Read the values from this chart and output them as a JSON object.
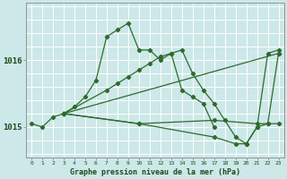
{
  "title": "Graphe pression niveau de la mer (hPa)",
  "bg_color": "#cde8e8",
  "grid_color": "#ffffff",
  "line_color": "#2d6b2d",
  "xlim": [
    -0.5,
    23.5
  ],
  "ylim": [
    1014.55,
    1016.85
  ],
  "yticks": [
    1015,
    1016
  ],
  "line1_x": [
    0,
    1,
    2,
    3,
    4,
    5,
    6,
    7,
    8,
    9,
    10,
    11,
    12,
    13,
    14,
    15,
    16,
    17
  ],
  "line1_y": [
    1015.05,
    1015.0,
    1015.15,
    1015.2,
    1015.3,
    1015.45,
    1015.7,
    1016.35,
    1016.45,
    1016.55,
    1016.15,
    1016.15,
    1016.0,
    1016.1,
    1015.55,
    1015.45,
    1015.35,
    1015.0
  ],
  "line2_x": [
    3,
    7,
    8,
    9,
    10,
    11,
    12,
    13,
    14,
    15,
    16,
    17,
    18,
    19,
    20,
    21,
    22,
    23
  ],
  "line2_y": [
    1015.2,
    1015.55,
    1015.65,
    1015.75,
    1015.85,
    1015.95,
    1016.05,
    1016.1,
    1016.15,
    1015.8,
    1015.55,
    1015.35,
    1015.1,
    1014.85,
    1014.75,
    1015.0,
    1016.1,
    1016.15
  ],
  "line3_x": [
    3,
    23
  ],
  "line3_y": [
    1015.2,
    1016.1
  ],
  "line4_x": [
    3,
    10,
    17,
    19,
    20,
    21,
    22,
    23
  ],
  "line4_y": [
    1015.2,
    1015.05,
    1014.85,
    1014.75,
    1014.75,
    1015.0,
    1015.05,
    1015.05
  ],
  "line5_x": [
    3,
    10,
    17,
    21,
    22,
    23
  ],
  "line5_y": [
    1015.2,
    1015.05,
    1015.1,
    1015.05,
    1015.05,
    1016.1
  ]
}
